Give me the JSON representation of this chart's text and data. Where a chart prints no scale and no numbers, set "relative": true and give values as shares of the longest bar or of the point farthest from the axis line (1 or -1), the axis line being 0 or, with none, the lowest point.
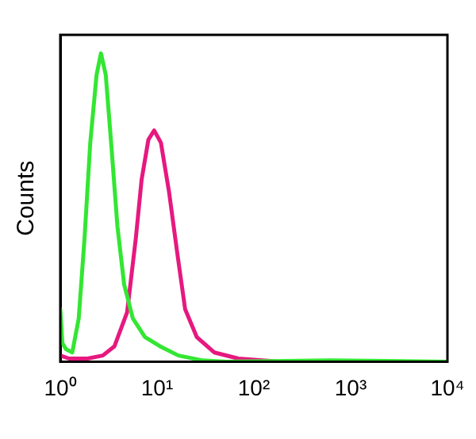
{
  "chart_data": {
    "type": "line",
    "ylabel": "Counts",
    "relative": true,
    "log": "x",
    "xlim": [
      1,
      10000
    ],
    "xticks": [
      {
        "value": 1,
        "label": "10⁰"
      },
      {
        "value": 10,
        "label": "10¹"
      },
      {
        "value": 100,
        "label": "10²"
      },
      {
        "value": 1000,
        "label": "10³"
      },
      {
        "value": 10000,
        "label": "10⁴"
      }
    ],
    "legend": false,
    "grid": false,
    "marker": "none",
    "line_style": "solid",
    "series": [
      {
        "color": "#33e633",
        "x": [
          1,
          1.05,
          1.15,
          1.33,
          1.55,
          1.78,
          2.04,
          2.37,
          2.63,
          2.95,
          3.39,
          3.89,
          4.57,
          5.62,
          7.5,
          10.7,
          16.6,
          29.5,
          52.5,
          603,
          10000
        ],
        "values": [
          0.17,
          0.06,
          0.04,
          0.03,
          0.14,
          0.4,
          0.71,
          0.93,
          1,
          0.93,
          0.69,
          0.44,
          0.25,
          0.14,
          0.08,
          0.05,
          0.02,
          0.004,
          0,
          0.004,
          0
        ]
      },
      {
        "color": "#e6197f",
        "x": [
          1,
          1.23,
          1.91,
          2.75,
          3.63,
          4.9,
          6.03,
          6.92,
          8.13,
          9.33,
          10.96,
          13.3,
          16.2,
          19.5,
          25.7,
          38.9,
          69.2,
          190.5,
          10000
        ],
        "values": [
          0.02,
          0.01,
          0.01,
          0.02,
          0.05,
          0.16,
          0.4,
          0.59,
          0.72,
          0.75,
          0.71,
          0.55,
          0.35,
          0.17,
          0.08,
          0.03,
          0.01,
          0,
          0
        ]
      }
    ]
  }
}
